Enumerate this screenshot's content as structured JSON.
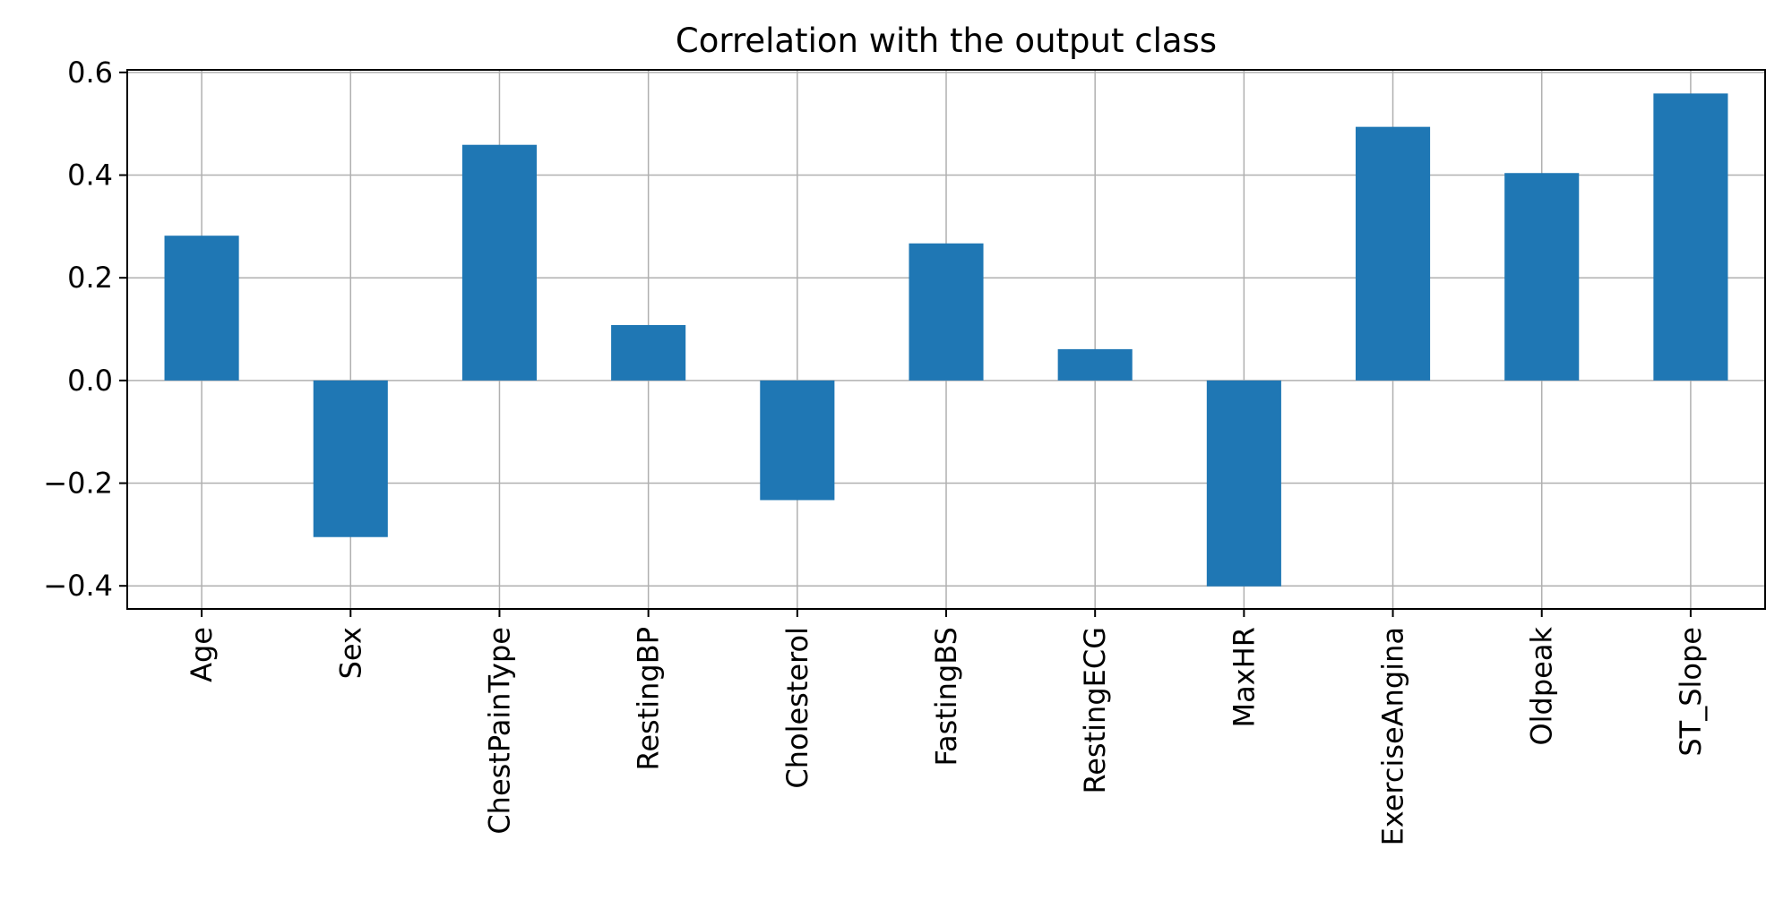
{
  "chart_data": {
    "type": "bar",
    "title": "Correlation with the output class",
    "xlabel": "",
    "ylabel": "",
    "categories": [
      "Age",
      "Sex",
      "ChestPainType",
      "RestingBP",
      "Cholesterol",
      "FastingBS",
      "RestingECG",
      "MaxHR",
      "ExerciseAngina",
      "Oldpeak",
      "ST_Slope"
    ],
    "values": [
      0.282,
      -0.305,
      0.459,
      0.108,
      -0.233,
      0.267,
      0.061,
      -0.401,
      0.494,
      0.404,
      0.559
    ],
    "ylim": [
      -0.445,
      0.605
    ],
    "yticks": [
      -0.4,
      -0.2,
      0.0,
      0.2,
      0.4,
      0.6
    ],
    "ytick_labels": [
      "−0.4",
      "−0.2",
      "0.0",
      "0.2",
      "0.4",
      "0.6"
    ],
    "grid": true,
    "legend": "none",
    "bar_color": "#1f77b4",
    "grid_color": "#b0b0b0"
  }
}
